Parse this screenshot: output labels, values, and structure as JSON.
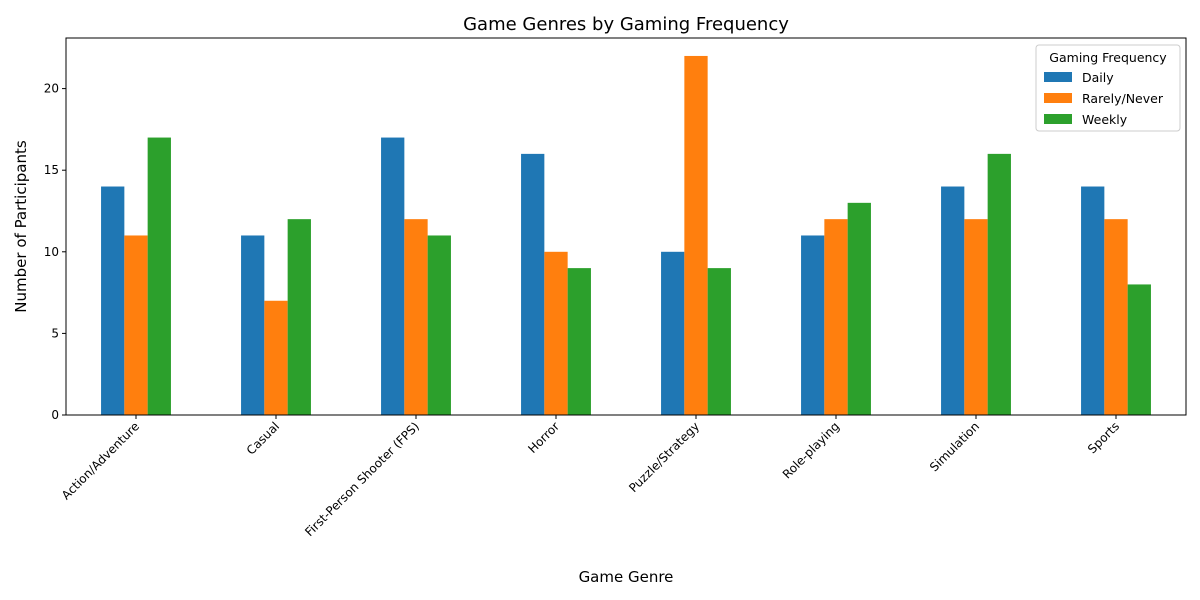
{
  "chart_data": {
    "type": "bar",
    "title": "Game Genres by Gaming Frequency",
    "xlabel": "Game Genre",
    "ylabel": "Number of Participants",
    "categories": [
      "Action/Adventure",
      "Casual",
      "First-Person Shooter (FPS)",
      "Horror",
      "Puzzle/Strategy",
      "Role-playing",
      "Simulation",
      "Sports"
    ],
    "series": [
      {
        "name": "Daily",
        "color": "#1f77b4",
        "values": [
          14,
          11,
          17,
          16,
          10,
          11,
          14,
          14
        ]
      },
      {
        "name": "Rarely/Never",
        "color": "#ff7f0e",
        "values": [
          11,
          7,
          12,
          10,
          22,
          12,
          12,
          12
        ]
      },
      {
        "name": "Weekly",
        "color": "#2ca02c",
        "values": [
          17,
          12,
          11,
          9,
          9,
          13,
          16,
          8
        ]
      }
    ],
    "ylim": [
      0,
      23.1
    ],
    "yticks": [
      0,
      5,
      10,
      15,
      20
    ],
    "legend_title": "Gaming Frequency",
    "legend_position": "top-right",
    "grid": false
  }
}
